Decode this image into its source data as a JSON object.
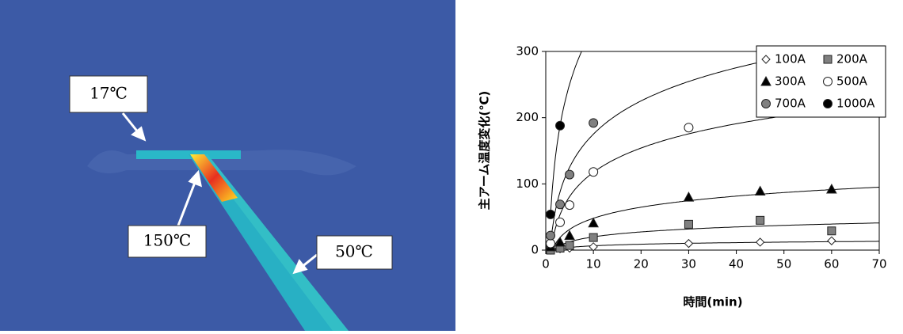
{
  "image": {
    "labels": [
      "17℃",
      "150℃",
      "50℃"
    ]
  },
  "chart_data": {
    "type": "scatter",
    "x_label": "時間(min)",
    "y_label": "主アーム温度変化(℃)",
    "xlim": [
      0,
      70
    ],
    "xticks": [
      0,
      10,
      20,
      30,
      40,
      50,
      60,
      70
    ],
    "ylim": [
      0,
      300
    ],
    "yticks": [
      0,
      100,
      200,
      300
    ],
    "legend": "top-right",
    "grid": false,
    "series": [
      {
        "name": "100A",
        "color": "#ffffff",
        "marker": "diamond",
        "x": [
          1,
          3,
          5,
          10,
          30,
          45,
          60
        ],
        "values": [
          0,
          2,
          3,
          5,
          10,
          12,
          14
        ]
      },
      {
        "name": "200A",
        "color": "#808080",
        "marker": "square",
        "x": [
          1,
          3,
          5,
          10,
          30,
          45,
          60
        ],
        "values": [
          0,
          3,
          7,
          19,
          39,
          45,
          29
        ]
      },
      {
        "name": "300A",
        "color": "#000000",
        "marker": "triangle",
        "x": [
          1,
          3,
          5,
          10,
          30,
          45,
          60
        ],
        "values": [
          5,
          12,
          22,
          41,
          80,
          89,
          92
        ]
      },
      {
        "name": "500A",
        "color": "#ffffff",
        "marker": "circle",
        "x": [
          1,
          3,
          5,
          10,
          30
        ],
        "values": [
          10,
          42,
          68,
          118,
          185
        ]
      },
      {
        "name": "700A",
        "color": "#808080",
        "marker": "circle",
        "x": [
          1,
          3,
          5,
          10
        ],
        "values": [
          22,
          69,
          114,
          192
        ]
      },
      {
        "name": "1000A",
        "color": "#000000",
        "marker": "circle",
        "x": [
          1,
          3
        ],
        "values": [
          54,
          188
        ]
      }
    ]
  }
}
